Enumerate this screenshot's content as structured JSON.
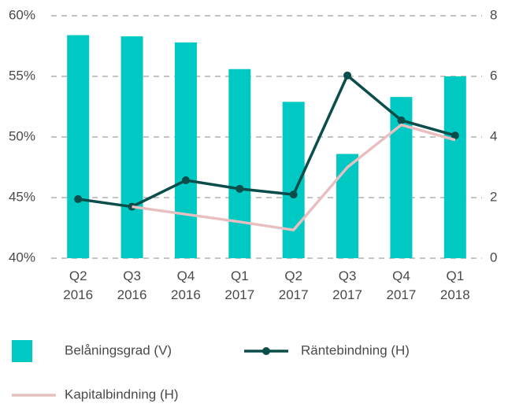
{
  "chart_data": {
    "type": "bar",
    "categories": [
      "Q2 2016",
      "Q3 2016",
      "Q4 2016",
      "Q1 2017",
      "Q2 2017",
      "Q3 2017",
      "Q4 2017",
      "Q1 2018"
    ],
    "series": [
      {
        "name": "Belåningsgrad (V)",
        "type": "bar",
        "axis": "y",
        "color": "#00c8c2",
        "values": [
          58.4,
          58.3,
          57.8,
          55.6,
          52.9,
          48.6,
          53.3,
          55.0
        ]
      },
      {
        "name": "Räntebindning (H)",
        "type": "line",
        "markers": true,
        "axis": "y2",
        "color": "#0b4d4a",
        "values": [
          1.95,
          1.7,
          2.57,
          2.29,
          2.1,
          6.03,
          4.55,
          4.05
        ]
      },
      {
        "name": "Kapitalbindning (H)",
        "type": "line",
        "markers": false,
        "axis": "y2",
        "color": "#e8bfc0",
        "values": [
          null,
          1.7,
          1.45,
          1.2,
          0.93,
          3.0,
          4.4,
          3.9
        ]
      }
    ],
    "ylim": [
      40,
      60
    ],
    "yticks": [
      {
        "value": 40,
        "label": "40%"
      },
      {
        "value": 45,
        "label": "45%"
      },
      {
        "value": 50,
        "label": "50%"
      },
      {
        "value": 55,
        "label": "55%"
      },
      {
        "value": 60,
        "label": "60%"
      }
    ],
    "y2lim": [
      0,
      8
    ],
    "y2ticks": [
      0,
      2,
      4,
      6,
      8
    ],
    "grid": true
  }
}
